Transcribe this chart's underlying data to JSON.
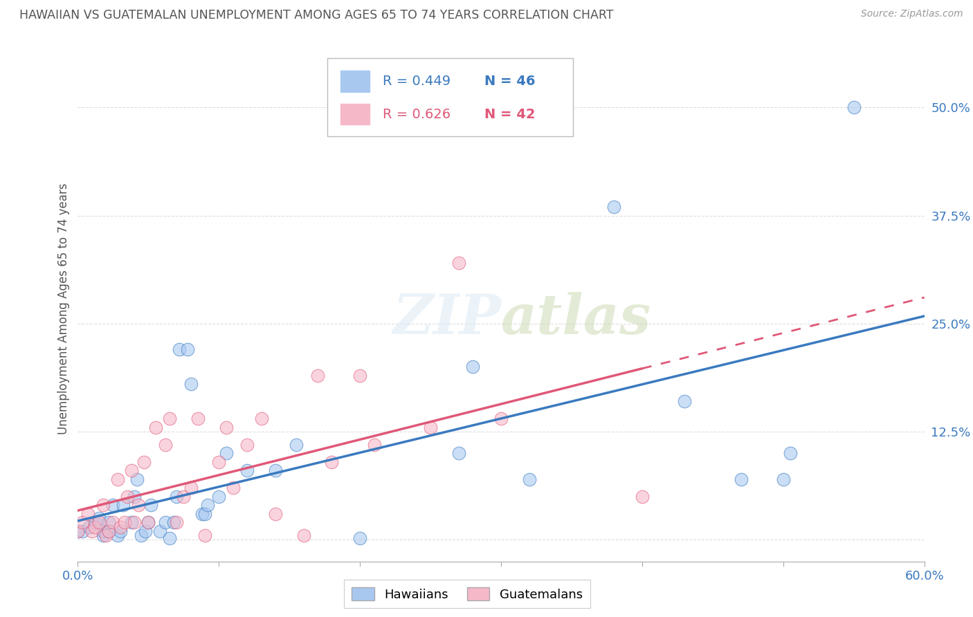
{
  "title": "HAWAIIAN VS GUATEMALAN UNEMPLOYMENT AMONG AGES 65 TO 74 YEARS CORRELATION CHART",
  "source": "Source: ZipAtlas.com",
  "ylabel": "Unemployment Among Ages 65 to 74 years",
  "xlim": [
    0.0,
    0.6
  ],
  "ylim": [
    -0.025,
    0.56
  ],
  "x_ticks": [
    0.0,
    0.1,
    0.2,
    0.3,
    0.4,
    0.5,
    0.6
  ],
  "x_tick_labels": [
    "0.0%",
    "",
    "",
    "",
    "",
    "",
    "60.0%"
  ],
  "y_ticks": [
    0.0,
    0.125,
    0.25,
    0.375,
    0.5
  ],
  "y_tick_labels": [
    "",
    "12.5%",
    "25.0%",
    "37.5%",
    "50.0%"
  ],
  "hawaiian_R": 0.449,
  "hawaiian_N": 46,
  "guatemalan_R": 0.626,
  "guatemalan_N": 42,
  "hawaiian_color": "#a8c8f0",
  "guatemalan_color": "#f5b8c8",
  "hawaiian_line_color": "#3a7abf",
  "guatemalan_line_color": "#e05878",
  "hawaiian_x": [
    0.0,
    0.003,
    0.008,
    0.012,
    0.015,
    0.018,
    0.018,
    0.022,
    0.022,
    0.025,
    0.028,
    0.03,
    0.032,
    0.038,
    0.04,
    0.042,
    0.045,
    0.048,
    0.05,
    0.052,
    0.058,
    0.062,
    0.065,
    0.068,
    0.07,
    0.072,
    0.078,
    0.08,
    0.088,
    0.09,
    0.092,
    0.1,
    0.105,
    0.12,
    0.14,
    0.155,
    0.2,
    0.27,
    0.28,
    0.32,
    0.38,
    0.43,
    0.47,
    0.5,
    0.505,
    0.55
  ],
  "hawaiian_y": [
    0.01,
    0.01,
    0.015,
    0.02,
    0.025,
    0.005,
    0.01,
    0.01,
    0.02,
    0.04,
    0.005,
    0.01,
    0.04,
    0.02,
    0.05,
    0.07,
    0.005,
    0.01,
    0.02,
    0.04,
    0.01,
    0.02,
    0.002,
    0.02,
    0.05,
    0.22,
    0.22,
    0.18,
    0.03,
    0.03,
    0.04,
    0.05,
    0.1,
    0.08,
    0.08,
    0.11,
    0.002,
    0.1,
    0.2,
    0.07,
    0.385,
    0.16,
    0.07,
    0.07,
    0.1,
    0.5
  ],
  "guatemalan_x": [
    0.0,
    0.003,
    0.007,
    0.01,
    0.012,
    0.015,
    0.018,
    0.02,
    0.022,
    0.025,
    0.028,
    0.03,
    0.033,
    0.035,
    0.038,
    0.04,
    0.043,
    0.047,
    0.05,
    0.055,
    0.062,
    0.065,
    0.07,
    0.075,
    0.08,
    0.085,
    0.09,
    0.1,
    0.105,
    0.11,
    0.12,
    0.13,
    0.14,
    0.16,
    0.17,
    0.18,
    0.2,
    0.21,
    0.25,
    0.27,
    0.3,
    0.4
  ],
  "guatemalan_y": [
    0.01,
    0.02,
    0.03,
    0.01,
    0.015,
    0.02,
    0.04,
    0.005,
    0.01,
    0.02,
    0.07,
    0.015,
    0.02,
    0.05,
    0.08,
    0.02,
    0.04,
    0.09,
    0.02,
    0.13,
    0.11,
    0.14,
    0.02,
    0.05,
    0.06,
    0.14,
    0.005,
    0.09,
    0.13,
    0.06,
    0.11,
    0.14,
    0.03,
    0.005,
    0.19,
    0.09,
    0.19,
    0.11,
    0.13,
    0.32,
    0.14,
    0.05
  ],
  "background_color": "#ffffff",
  "grid_color": "#dddddd"
}
